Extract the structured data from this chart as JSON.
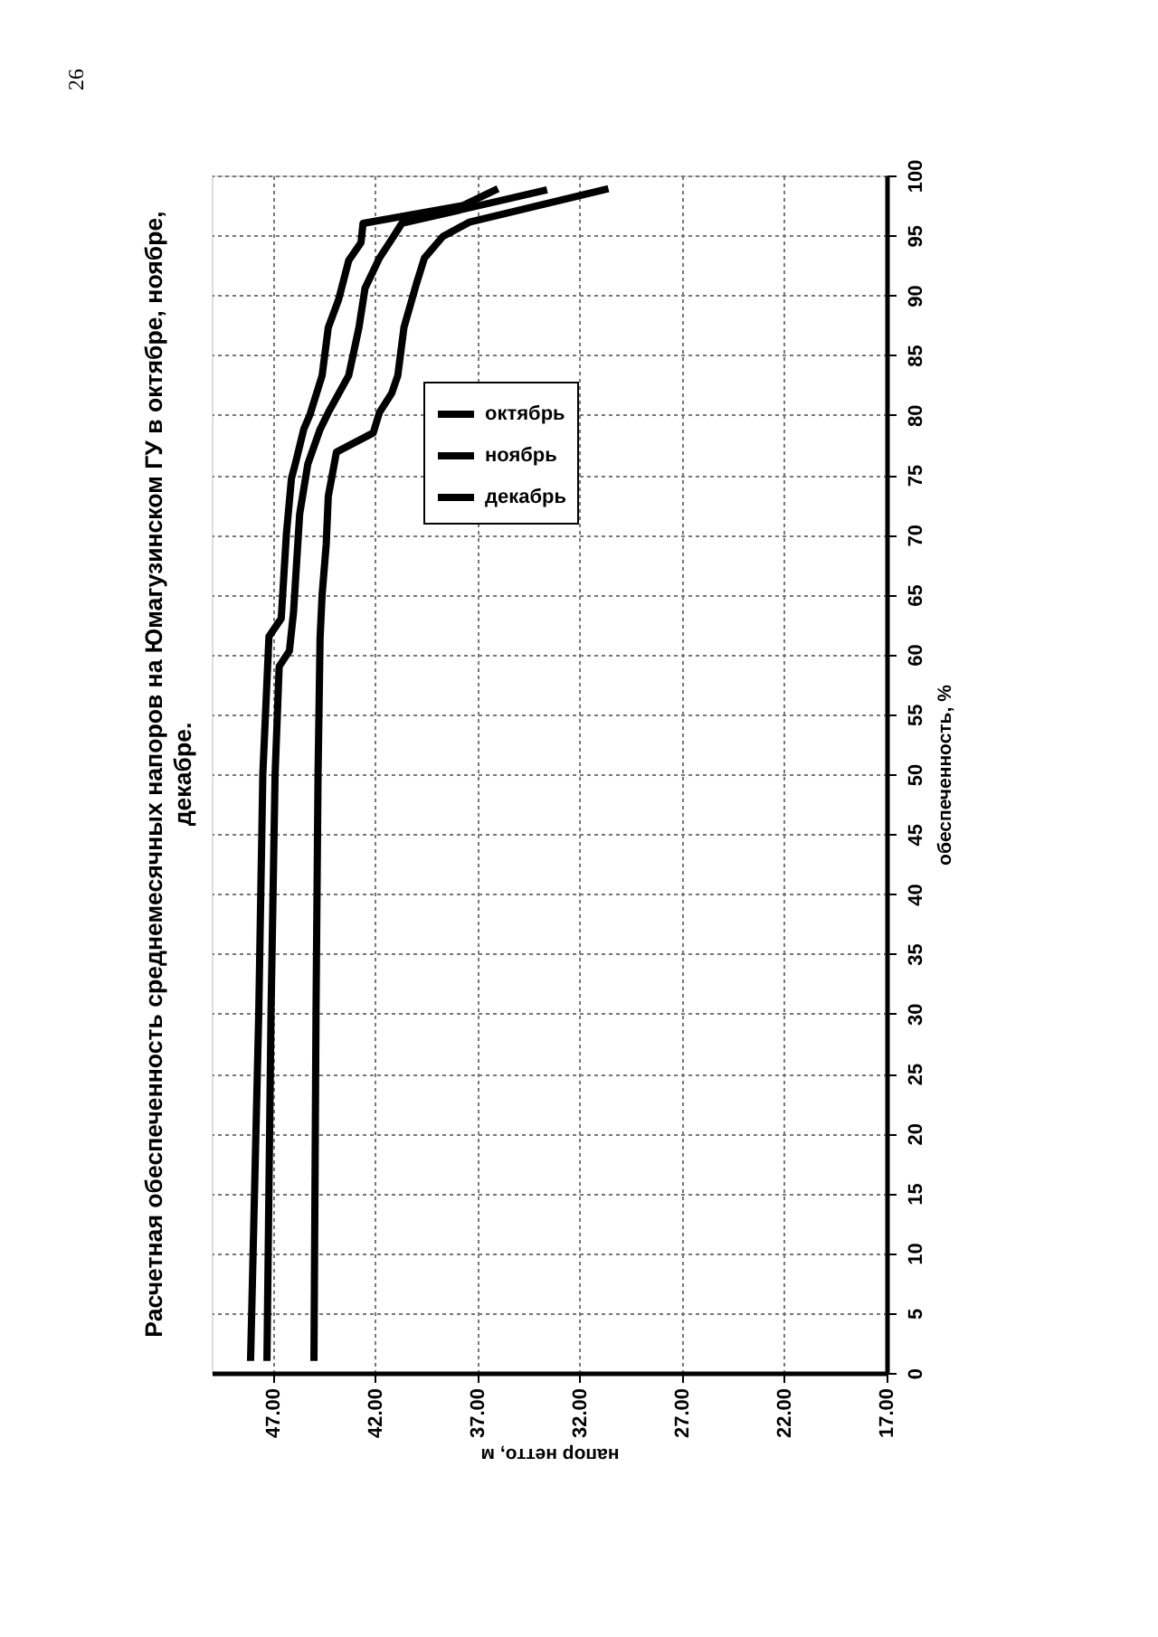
{
  "chart_data": {
    "type": "line",
    "title": "Расчетная обеспеченность среднемесячных напоров на Юмагузинском ГУ в октябре, ноябре, декабре.",
    "xlabel": "напор нетто, м",
    "ylabel": "обеспеченность, %",
    "annotations": [
      "26"
    ],
    "xlim": [
      50,
      17
    ],
    "xticks": [
      {
        "value": 47,
        "label": "47.00"
      },
      {
        "value": 42,
        "label": "42.00"
      },
      {
        "value": 37,
        "label": "37.00"
      },
      {
        "value": 32,
        "label": "32.00"
      },
      {
        "value": 27,
        "label": "27.00"
      },
      {
        "value": 22,
        "label": "22.00"
      },
      {
        "value": 17,
        "label": "17.00"
      }
    ],
    "ylim": [
      0,
      100
    ],
    "yticks": [
      0,
      5,
      10,
      15,
      20,
      25,
      30,
      35,
      40,
      45,
      50,
      55,
      60,
      65,
      70,
      75,
      80,
      85,
      90,
      95,
      100
    ],
    "grid": true,
    "legend": "top left",
    "line_style": "solid",
    "series": [
      {
        "name": "октябрь",
        "color": "#000000",
        "x": [
          48.1,
          47.7,
          47.5,
          47.2,
          46.6,
          46.35,
          46.1,
          45.9,
          45.5,
          45.2,
          44.6,
          44.3,
          43.8,
          43.3,
          42.7,
          42.6,
          37.7,
          36.0
        ],
        "values": [
          1,
          30,
          50,
          61.5,
          63,
          70,
          74.7,
          76,
          78.8,
          80,
          83.3,
          87.3,
          89.6,
          92.9,
          94.4,
          96,
          97.5,
          98.9
        ]
      },
      {
        "name": "ноябрь",
        "color": "#000000",
        "x": [
          47.3,
          47.1,
          46.9,
          46.7,
          46.2,
          46.0,
          45.7,
          45.3,
          44.7,
          44.3,
          43.3,
          42.8,
          42.5,
          41.8,
          41.3,
          40.7,
          33.6
        ],
        "values": [
          1,
          30,
          50,
          59,
          60.3,
          63.5,
          71.7,
          75.9,
          78.8,
          80.2,
          83.3,
          87.3,
          90.6,
          93.1,
          94.4,
          96,
          98.8
        ]
      },
      {
        "name": "декабрь",
        "color": "#000000",
        "x": [
          45.0,
          44.9,
          44.8,
          44.7,
          44.6,
          44.4,
          44.3,
          43.9,
          42.1,
          41.8,
          41.2,
          40.9,
          40.6,
          40.0,
          39.6,
          38.7,
          37.4,
          30.6
        ],
        "values": [
          1,
          30,
          50,
          61.4,
          65,
          69.2,
          73.2,
          76.9,
          78.5,
          80.2,
          81.8,
          83.3,
          87.3,
          90.9,
          93.1,
          94.9,
          96.1,
          98.9
        ]
      }
    ]
  }
}
